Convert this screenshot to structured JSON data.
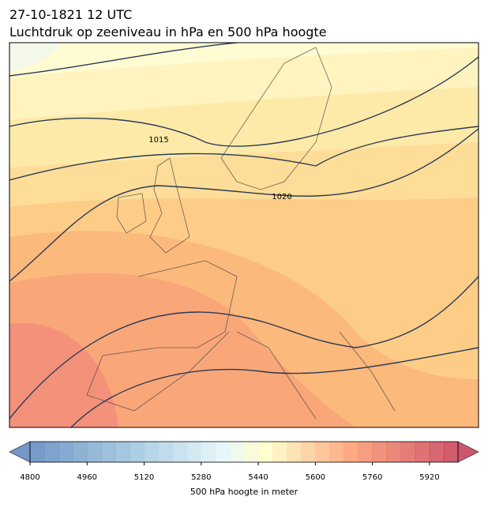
{
  "title": "27-10-1821 12 UTC",
  "subtitle": "Luchtdruk op zeeniveau in hPa en 500 hPa hoogte",
  "contour_labels": [
    "1015",
    "1020"
  ],
  "colorbar": {
    "label": "500 hPa hoogte in meter",
    "lim": [
      4800,
      6000
    ],
    "ticks": [
      4800,
      4960,
      5120,
      5280,
      5440,
      5600,
      5760,
      5920
    ]
  }
}
